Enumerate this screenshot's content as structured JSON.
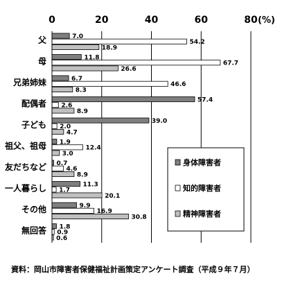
{
  "chart_data": {
    "type": "bar",
    "orientation": "horizontal",
    "unit_label": "(%)",
    "xlim": [
      0,
      80
    ],
    "x_ticks": [
      "0",
      "20",
      "40",
      "60",
      "80"
    ],
    "grid": true,
    "legend_position": "right",
    "categories": [
      "父",
      "母",
      "兄弟姉妹",
      "配偶者",
      "子ども",
      "祖父、祖母",
      "友だちなど",
      "一人暮らし",
      "その他",
      "無回答"
    ],
    "series": [
      {
        "name": "身体障害者",
        "color": "#7f7f7f",
        "values": [
          7.0,
          11.8,
          6.7,
          57.4,
          39.0,
          1.9,
          0.7,
          11.3,
          9.9,
          1.8
        ]
      },
      {
        "name": "知的障害者",
        "color": "#ffffff",
        "values": [
          54.2,
          67.7,
          46.6,
          2.6,
          2.0,
          12.4,
          4.6,
          1.7,
          16.9,
          0.9
        ]
      },
      {
        "name": "精神障害者",
        "color": "#c0c0c0",
        "values": [
          18.9,
          26.6,
          8.3,
          8.9,
          4.7,
          3.0,
          8.9,
          20.1,
          30.8,
          0.6
        ]
      }
    ],
    "source": "資料：岡山市障害者保健福祉計画策定アンケート調査（平成９年７月）"
  }
}
